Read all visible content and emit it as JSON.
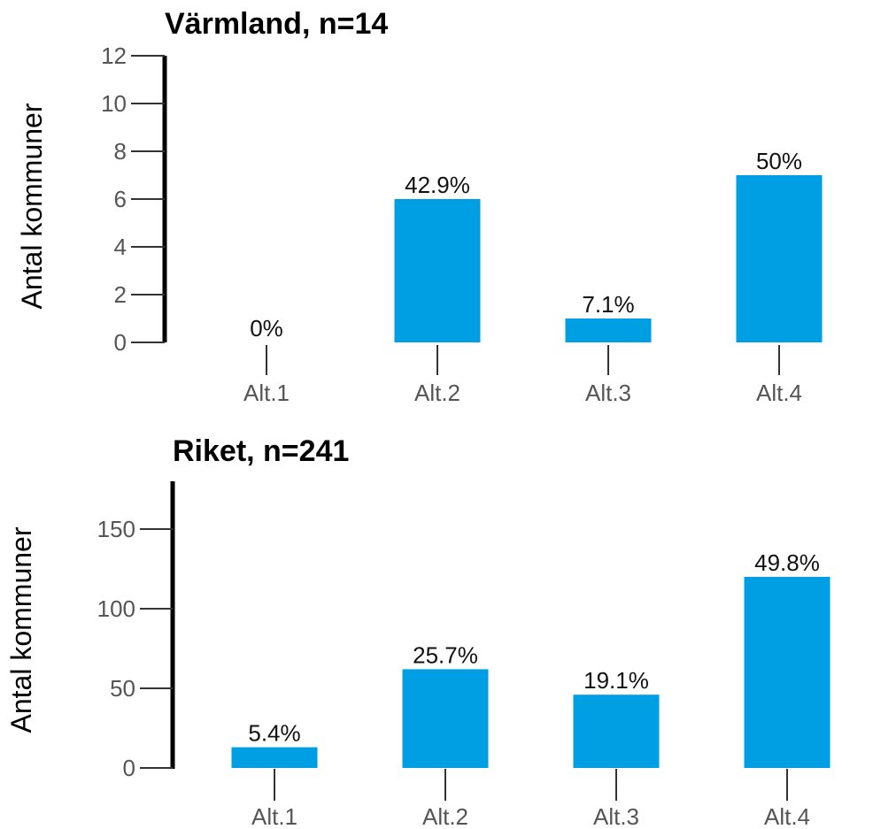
{
  "chart_data": [
    {
      "type": "bar",
      "title": "Värmland, n=14",
      "ylabel": "Antal kommuner",
      "xlabel": "",
      "categories": [
        "Alt.1",
        "Alt.2",
        "Alt.3",
        "Alt.4"
      ],
      "values": [
        0,
        6,
        1,
        7
      ],
      "data_labels": [
        "0%",
        "42.9%",
        "7.1%",
        "50%"
      ],
      "ylim": [
        0,
        12
      ],
      "yticks": [
        0,
        2,
        4,
        6,
        8,
        10,
        12
      ],
      "grid": false,
      "bar_color": "#009fe3"
    },
    {
      "type": "bar",
      "title": "Riket, n=241",
      "ylabel": "Antal kommuner",
      "xlabel": "",
      "categories": [
        "Alt.1",
        "Alt.2",
        "Alt.3",
        "Alt.4"
      ],
      "values": [
        13,
        62,
        46,
        120
      ],
      "data_labels": [
        "5.4%",
        "25.7%",
        "19.1%",
        "49.8%"
      ],
      "ylim": [
        0,
        180
      ],
      "yticks": [
        0,
        50,
        100,
        150
      ],
      "grid": false,
      "bar_color": "#009fe3"
    }
  ]
}
